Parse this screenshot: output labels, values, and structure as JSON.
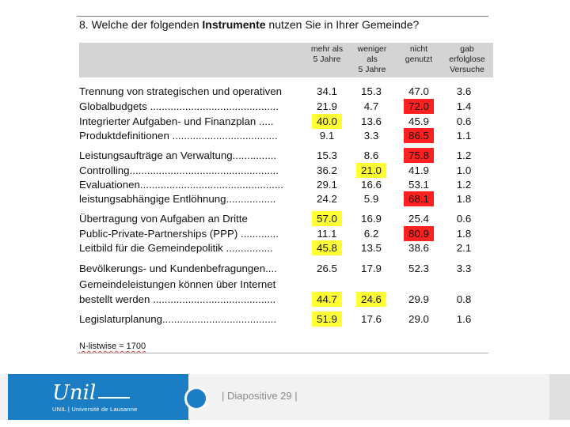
{
  "question": {
    "number": "8.",
    "text_before": "Welche der folgenden ",
    "text_bold": "Instrumente",
    "text_after": " nutzen Sie in Ihrer Gemeinde?"
  },
  "columns": [
    "mehr als\n5 Jahre",
    "weniger\nals\n5 Jahre",
    "nicht\ngenutzt",
    "gab\nerfolglose\nVersuche"
  ],
  "highlight_colors": {
    "yellow": "#ffff33",
    "red": "#ff2020"
  },
  "rows": [
    {
      "label": "Trennung von strategischen und operativen",
      "values": [
        "34.1",
        "15.3",
        "47.0",
        "3.6"
      ],
      "hl": [
        "",
        "",
        "",
        ""
      ]
    },
    {
      "label": "Globalbudgets ............................................",
      "values": [
        "21.9",
        "4.7",
        "72.0",
        "1.4"
      ],
      "hl": [
        "",
        "",
        "red",
        ""
      ]
    },
    {
      "label": "Integrierter Aufgaben- und Finanzplan .....",
      "values": [
        "40.0",
        "13.6",
        "45.9",
        "0.6"
      ],
      "hl": [
        "yellow",
        "",
        "",
        ""
      ]
    },
    {
      "label": "Produktdefinitionen ....................................",
      "values": [
        "9.1",
        "3.3",
        "86.5",
        "1.1"
      ],
      "hl": [
        "",
        "",
        "red",
        ""
      ]
    },
    {
      "label": "Leistungsaufträge an Verwaltung...............",
      "values": [
        "15.3",
        "8.6",
        "75.8",
        "1.2"
      ],
      "hl": [
        "",
        "",
        "red",
        ""
      ]
    },
    {
      "label": "Controlling...................................................",
      "values": [
        "36.2",
        "21.0",
        "41.9",
        "1.0"
      ],
      "hl": [
        "",
        "yellow",
        "",
        ""
      ]
    },
    {
      "label": "Evaluationen.................................................",
      "values": [
        "29.1",
        "16.6",
        "53.1",
        "1.2"
      ],
      "hl": [
        "",
        "",
        "",
        ""
      ]
    },
    {
      "label": "leistungsabhängige Entlöhnung.................",
      "values": [
        "24.2",
        "5.9",
        "68.1",
        "1.8"
      ],
      "hl": [
        "",
        "",
        "red",
        ""
      ]
    },
    {
      "label": "Übertragung von Aufgaben an Dritte",
      "values": [
        "57.0",
        "16.9",
        "25.4",
        "0.6"
      ],
      "hl": [
        "yellow",
        "",
        "",
        ""
      ]
    },
    {
      "label": "Public-Private-Partnerships (PPP) .............",
      "values": [
        "11.1",
        "6.2",
        "80.9",
        "1.8"
      ],
      "hl": [
        "",
        "",
        "red",
        ""
      ]
    },
    {
      "label": "Leitbild für die Gemeindepolitik ................",
      "values": [
        "45.8",
        "13.5",
        "38.6",
        "2.1"
      ],
      "hl": [
        "yellow",
        "",
        "",
        ""
      ]
    },
    {
      "label": "Bevölkerungs- und Kundenbefragungen....",
      "values": [
        "26.5",
        "17.9",
        "52.3",
        "3.3"
      ],
      "hl": [
        "",
        "",
        "",
        ""
      ]
    },
    {
      "label": "Gemeindeleistungen können über Internet",
      "values": [
        "",
        "",
        "",
        ""
      ],
      "hl": [
        "",
        "",
        "",
        ""
      ]
    },
    {
      "label": "bestellt werden ..........................................",
      "values": [
        "44.7",
        "24.6",
        "29.9",
        "0.8"
      ],
      "hl": [
        "yellow",
        "yellow",
        "",
        ""
      ]
    },
    {
      "label": "Legislaturplanung.......................................",
      "values": [
        "51.9",
        "17.6",
        "29.0",
        "1.6"
      ],
      "hl": [
        "yellow",
        "",
        "",
        ""
      ]
    }
  ],
  "footnote": "N-listwise = 1700",
  "footer": {
    "logo_word": "Unil",
    "logo_sub": "UNIL | Université de Lausanne",
    "slide_label": "| Diapositive 29 |"
  }
}
